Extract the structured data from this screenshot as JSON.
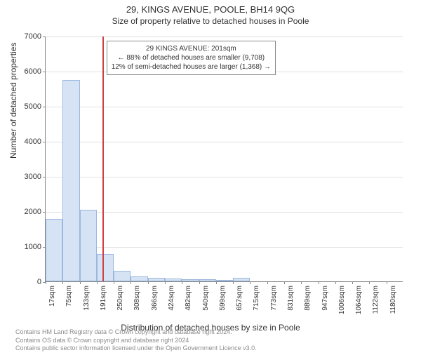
{
  "titles": {
    "main": "29, KINGS AVENUE, POOLE, BH14 9QG",
    "sub": "Size of property relative to detached houses in Poole"
  },
  "axes": {
    "ylabel": "Number of detached properties",
    "xlabel": "Distribution of detached houses by size in Poole",
    "ylim": [
      0,
      7000
    ],
    "ytick_step": 1000,
    "label_fontsize": 12,
    "tick_fontsize": 11
  },
  "chart": {
    "type": "histogram",
    "bar_fill": "#d6e3f4",
    "bar_stroke": "#9cb8de",
    "background_color": "#ffffff",
    "grid_color": "#e0e0e0",
    "axis_color": "#888888",
    "x_categories": [
      "17sqm",
      "75sqm",
      "133sqm",
      "191sqm",
      "250sqm",
      "308sqm",
      "366sqm",
      "424sqm",
      "482sqm",
      "540sqm",
      "599sqm",
      "657sqm",
      "715sqm",
      "773sqm",
      "831sqm",
      "889sqm",
      "947sqm",
      "1006sqm",
      "1064sqm",
      "1122sqm",
      "1180sqm"
    ],
    "values": [
      1780,
      5750,
      2050,
      790,
      310,
      140,
      100,
      80,
      70,
      60,
      50,
      100,
      0,
      0,
      0,
      0,
      0,
      0,
      0,
      0,
      0
    ]
  },
  "reference": {
    "value_sqm": 201,
    "line_color": "#d04040",
    "annotation": {
      "line1": "29 KINGS AVENUE: 201sqm",
      "line2": "← 88% of detached houses are smaller (9,708)",
      "line3": "12% of semi-detached houses are larger (1,368) →"
    }
  },
  "footer": {
    "line1": "Contains HM Land Registry data © Crown copyright and database right 2024.",
    "line2": "Contains OS data © Crown copyright and database right 2024",
    "line3": "Contains public sector information licensed under the Open Government Licence v3.0."
  }
}
